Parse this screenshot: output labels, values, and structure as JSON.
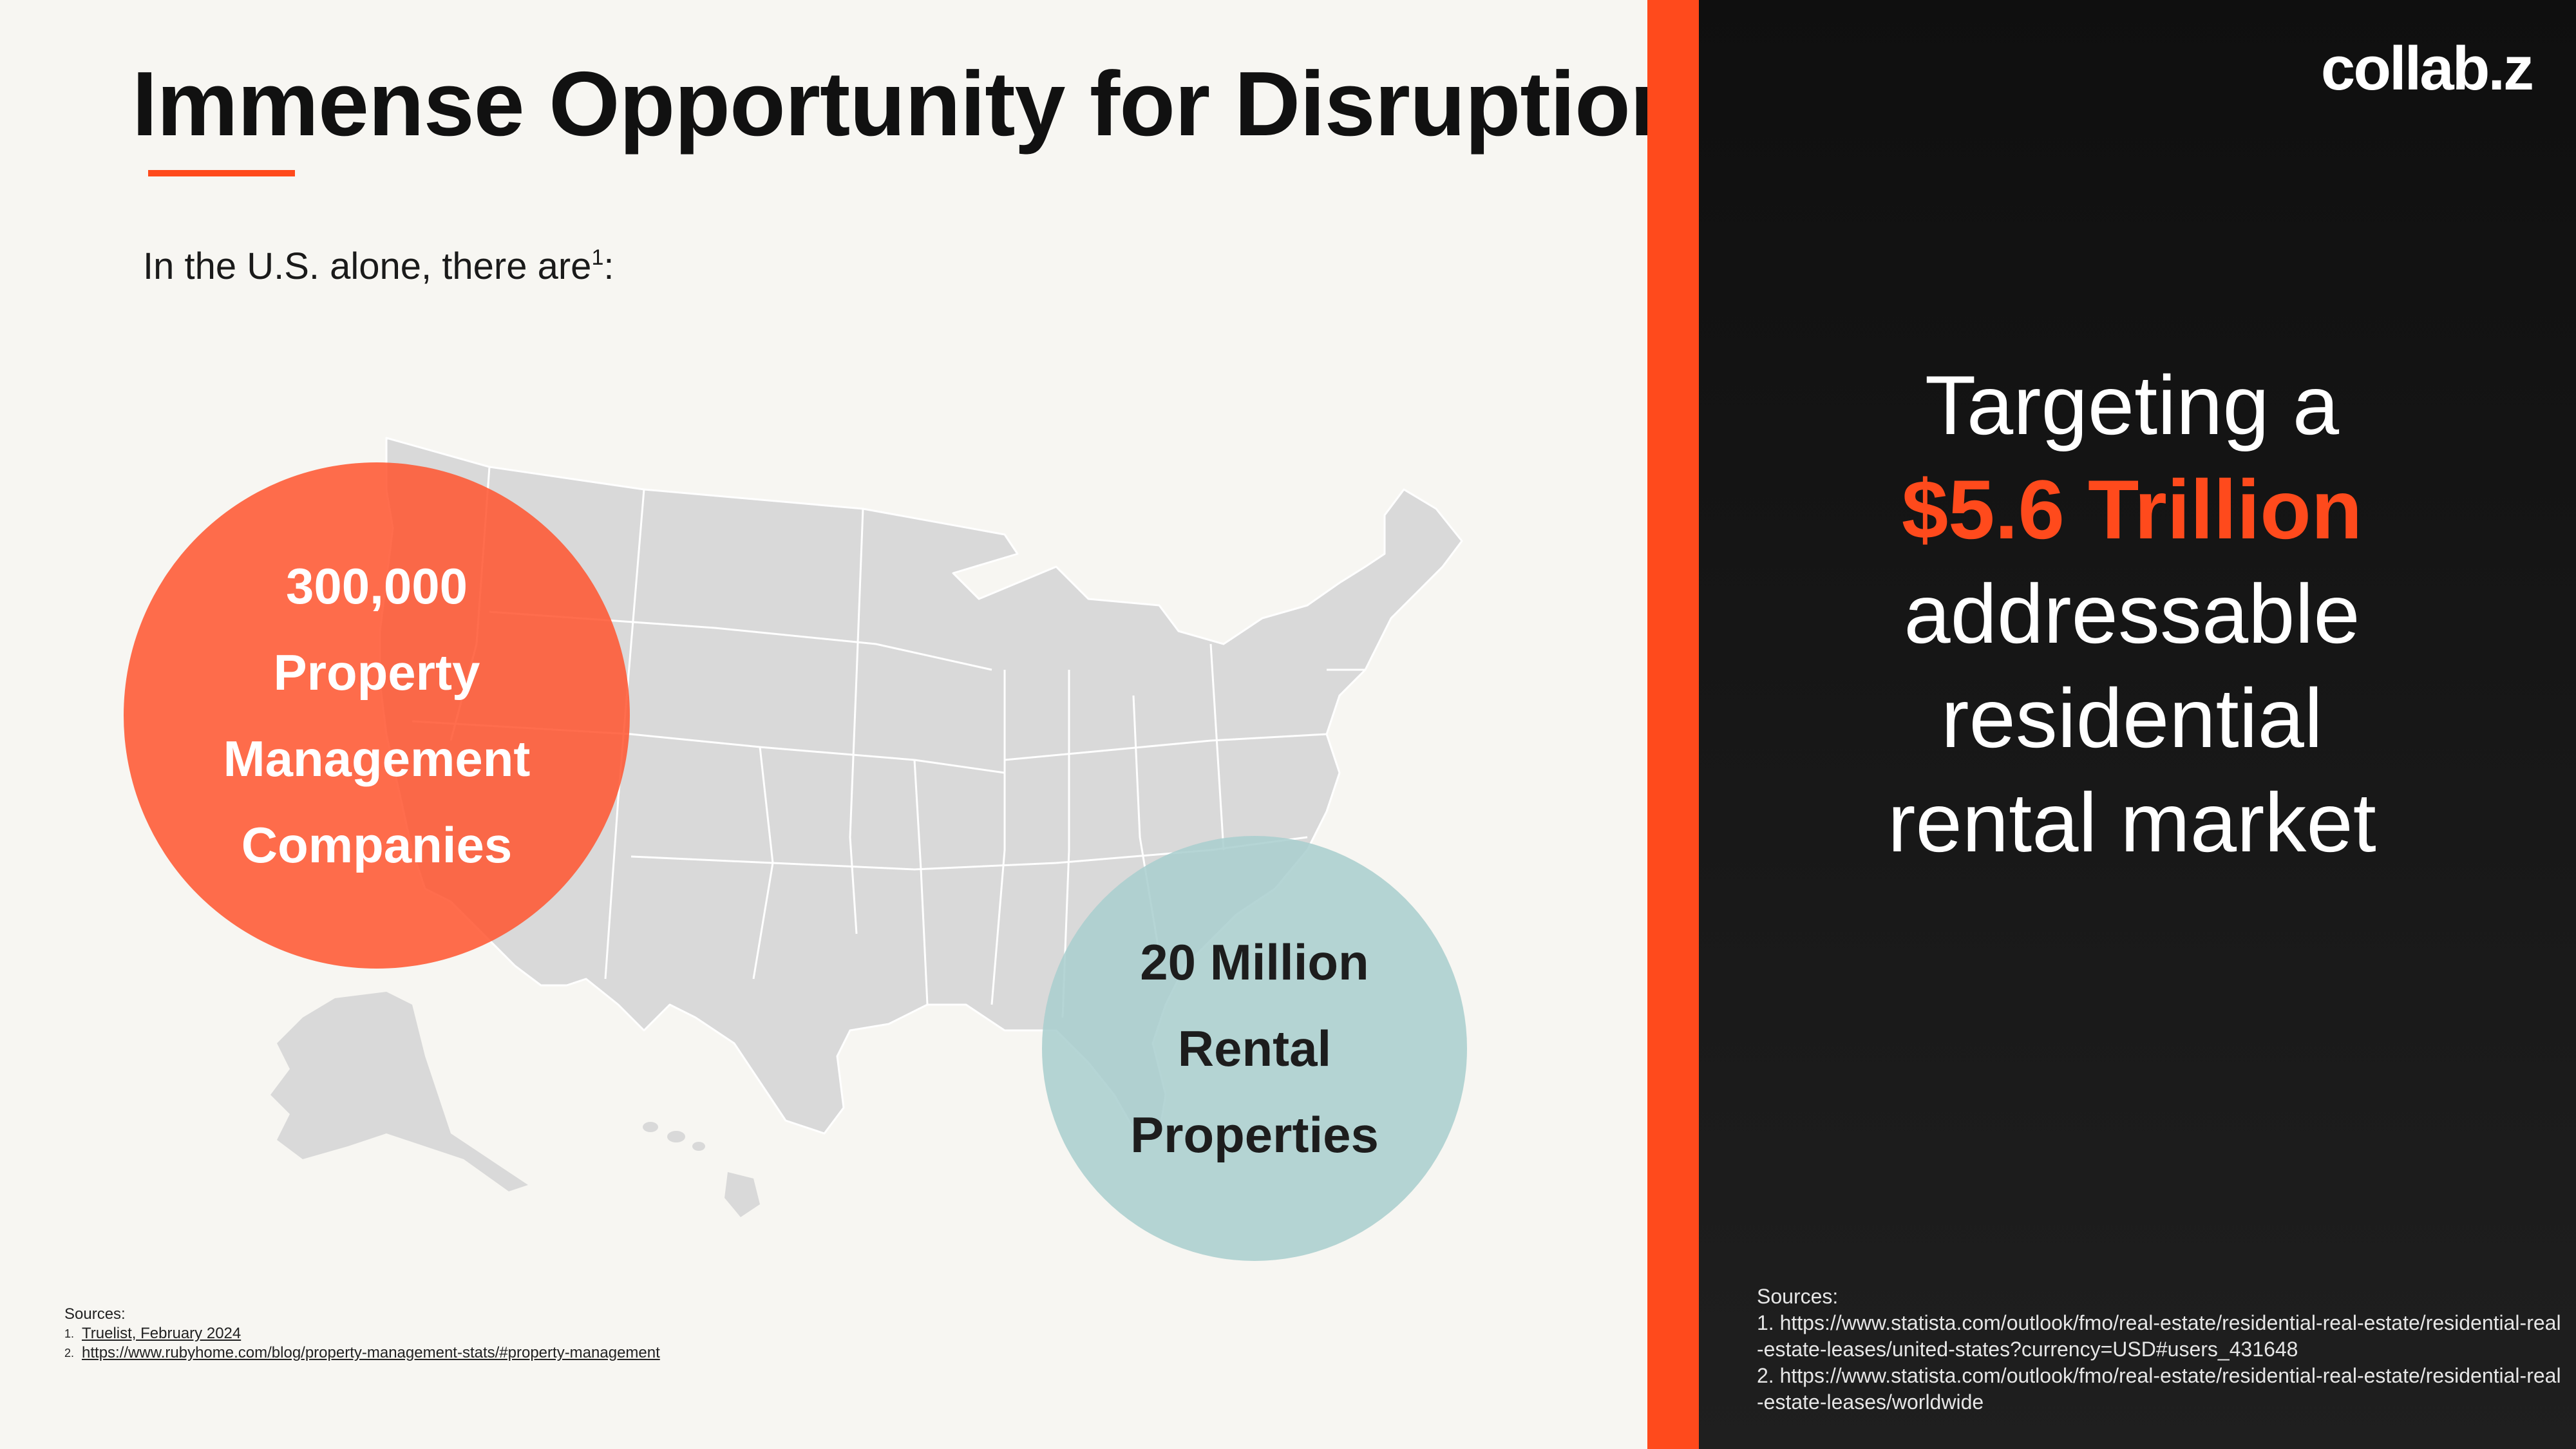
{
  "title": "Immense Opportunity for Disruption",
  "intro": {
    "text": "In the U.S. alone, there are",
    "superscript": "1",
    "suffix": ":"
  },
  "stat_property_management": {
    "line1": "300,000",
    "line2": "Property",
    "line3": "Management",
    "line4": "Companies"
  },
  "stat_rental": {
    "line1": "20 Million",
    "line2": "Rental",
    "line3": "Properties"
  },
  "sources_left": {
    "heading": "Sources:",
    "items": [
      {
        "num": "1.",
        "text": "Truelist, February 2024"
      },
      {
        "num": "2.",
        "text": "https://www.rubyhome.com/blog/property-management-stats/#property-management"
      }
    ]
  },
  "logo": "collab.z",
  "pitch": {
    "line1": "Targeting a",
    "highlight": "$5.6 Trillion",
    "line3": "addressable",
    "line4": "residential",
    "line5": "rental market"
  },
  "sources_right": {
    "heading": "Sources:",
    "item1": "1. https://www.statista.com/outlook/fmo/real-estate/residential-real-estate/residential-real-estate-leases/united-states?currency=USD#users_431648",
    "item2": "2. https://www.statista.com/outlook/fmo/real-estate/residential-real-estate/residential-real-estate-leases/worldwide"
  },
  "colors": {
    "accent": "#ff4a1c",
    "orange_circle": "#ff6a47",
    "teal_circle": "#a8cece",
    "map": "#d9d9d9",
    "dark_panel": "#141414",
    "background": "#f7f6f2"
  }
}
